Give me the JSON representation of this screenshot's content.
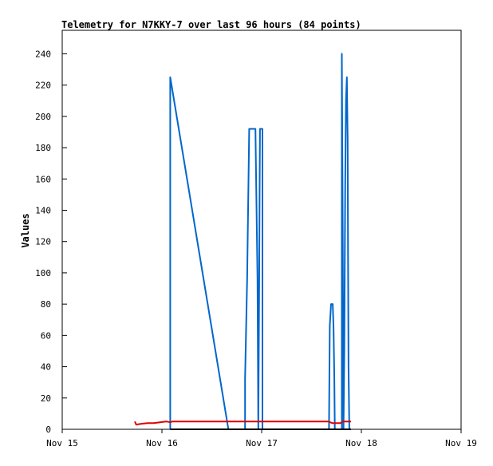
{
  "chart_data": {
    "type": "line",
    "title": "Telemetry for N7KKY-7 over last 96 hours (84 points)",
    "xlabel": "",
    "ylabel": "Values",
    "x_ticks": [
      "Nov 15",
      "Nov 16",
      "Nov 17",
      "Nov 18",
      "Nov 19"
    ],
    "y_ticks": [
      0,
      20,
      40,
      60,
      80,
      100,
      120,
      140,
      160,
      180,
      200,
      220,
      240
    ],
    "xlim": [
      0,
      96
    ],
    "ylim": [
      0,
      255
    ],
    "grid": false,
    "legend": "none",
    "series": [
      {
        "color": "#0066cc",
        "points": [
          [
            26.0,
            0
          ],
          [
            26.0,
            225
          ],
          [
            40.0,
            0
          ],
          [
            44.0,
            0
          ],
          [
            44.0,
            32
          ],
          [
            44.5,
            96
          ],
          [
            45.0,
            192
          ],
          [
            46.5,
            192
          ],
          [
            47.0,
            96
          ],
          [
            47.2,
            0
          ],
          [
            47.4,
            96
          ],
          [
            47.5,
            150
          ],
          [
            47.6,
            192
          ],
          [
            48.2,
            192
          ],
          [
            48.2,
            0
          ],
          [
            64.2,
            0
          ],
          [
            64.4,
            66
          ],
          [
            64.7,
            80
          ],
          [
            65.1,
            80
          ],
          [
            65.3,
            65
          ],
          [
            65.5,
            32
          ],
          [
            65.6,
            0
          ],
          [
            65.9,
            0
          ],
          [
            66.0,
            0
          ],
          [
            67.3,
            0
          ],
          [
            67.3,
            240
          ],
          [
            67.5,
            128
          ],
          [
            67.7,
            0
          ],
          [
            67.9,
            50
          ],
          [
            68.1,
            155
          ],
          [
            68.3,
            210
          ],
          [
            68.5,
            225
          ],
          [
            68.7,
            185
          ],
          [
            68.8,
            110
          ],
          [
            68.9,
            40
          ],
          [
            69.1,
            0
          ]
        ]
      },
      {
        "color": "#e00000",
        "points": [
          [
            17.5,
            5
          ],
          [
            17.8,
            3
          ],
          [
            19.0,
            3.5
          ],
          [
            20.5,
            4
          ],
          [
            22.0,
            4
          ],
          [
            23.5,
            4.5
          ],
          [
            25.0,
            5
          ],
          [
            26.0,
            4.5
          ],
          [
            26.5,
            5
          ],
          [
            35.0,
            5
          ],
          [
            45.0,
            5
          ],
          [
            55.0,
            5
          ],
          [
            64.0,
            5
          ],
          [
            65.0,
            4
          ],
          [
            66.0,
            4
          ],
          [
            67.0,
            4
          ],
          [
            67.5,
            5
          ],
          [
            69.5,
            5
          ]
        ]
      },
      {
        "color": "#000000",
        "points": [
          [
            26.0,
            0
          ],
          [
            40.0,
            0
          ],
          [
            48.0,
            0
          ],
          [
            56.0,
            0
          ],
          [
            64.0,
            0
          ],
          [
            69.5,
            0
          ]
        ]
      }
    ]
  }
}
